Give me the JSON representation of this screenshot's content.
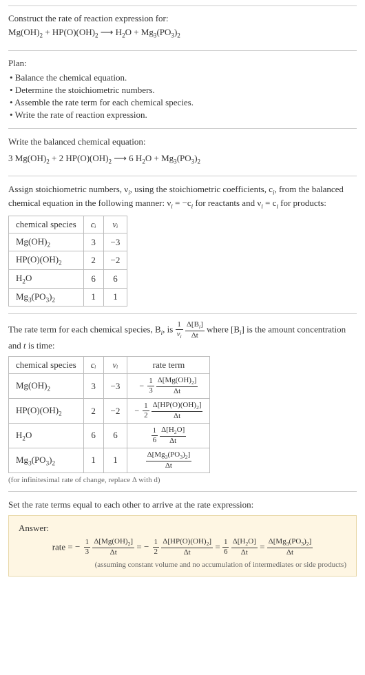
{
  "problem": {
    "title": "Construct the rate of reaction expression for:",
    "equation_left_1": "Mg(OH)",
    "equation_left_1_sub": "2",
    "equation_plus1": " + HP(O)(OH)",
    "equation_left_2_sub": "2",
    "equation_arrow": " ⟶ ",
    "equation_right_1": "H",
    "equation_right_1_sub": "2",
    "equation_right_1b": "O + Mg",
    "equation_right_2_sub": "3",
    "equation_right_2": "(PO",
    "equation_right_3_sub": "3",
    "equation_right_3": ")",
    "equation_right_4_sub": "2"
  },
  "plan": {
    "label": "Plan:",
    "b1": "• Balance the chemical equation.",
    "b2": "• Determine the stoichiometric numbers.",
    "b3": "• Assemble the rate term for each chemical species.",
    "b4": "• Write the rate of reaction expression."
  },
  "balanced": {
    "label": "Write the balanced chemical equation:",
    "c1": "3 Mg(OH)",
    "s1": "2",
    "c2": " + 2 HP(O)(OH)",
    "s2": "2",
    "arrow": " ⟶ ",
    "c3": "6 H",
    "s3": "2",
    "c4": "O + Mg",
    "s4": "3",
    "c5": "(PO",
    "s5": "3",
    "c6": ")",
    "s6": "2"
  },
  "stoich": {
    "para_a": "Assign stoichiometric numbers, ν",
    "para_a_sub": "i",
    "para_b": ", using the stoichiometric coefficients, c",
    "para_b_sub": "i",
    "para_c": ", from the balanced chemical equation in the following manner: ν",
    "para_c_sub": "i",
    "para_d": " = −c",
    "para_d_sub": "i",
    "para_e": " for reactants and ν",
    "para_e_sub": "i",
    "para_f": " = c",
    "para_f_sub": "i",
    "para_g": " for products:",
    "headers": {
      "h1": "chemical species",
      "h2": "cᵢ",
      "h3": "νᵢ"
    },
    "rows": [
      {
        "sp": "Mg(OH)",
        "sp_sub": "2",
        "c": "3",
        "v": "−3"
      },
      {
        "sp": "HP(O)(OH)",
        "sp_sub": "2",
        "c": "2",
        "v": "−2"
      },
      {
        "sp_a": "H",
        "sp_sub_a": "2",
        "sp_b": "O",
        "c": "6",
        "v": "6"
      },
      {
        "sp_a": "Mg",
        "sp_sub_a": "3",
        "sp_b": "(PO",
        "sp_sub_b": "3",
        "sp_c": ")",
        "sp_sub_c": "2",
        "c": "1",
        "v": "1"
      }
    ]
  },
  "rate_para": {
    "a": "The rate term for each chemical species, B",
    "a_sub": "i",
    "b": ", is ",
    "frac1_num": "1",
    "frac1_den_a": "ν",
    "frac1_den_sub": "i",
    "frac2_num_a": "Δ[B",
    "frac2_num_sub": "i",
    "frac2_num_b": "]",
    "frac2_den": "Δt",
    "c": " where [B",
    "c_sub": "i",
    "d": "] is the amount concentration and ",
    "e": "t",
    "f": " is time:"
  },
  "rate_table": {
    "headers": {
      "h1": "chemical species",
      "h2": "cᵢ",
      "h3": "νᵢ",
      "h4": "rate term"
    },
    "rows": [
      {
        "sp": "Mg(OH)",
        "sp_sub": "2",
        "c": "3",
        "v": "−3",
        "neg": "−",
        "f1n": "1",
        "f1d": "3",
        "f2n_a": "Δ[Mg(OH)",
        "f2n_s": "2",
        "f2n_b": "]",
        "f2d": "Δt"
      },
      {
        "sp": "HP(O)(OH)",
        "sp_sub": "2",
        "c": "2",
        "v": "−2",
        "neg": "−",
        "f1n": "1",
        "f1d": "2",
        "f2n_a": "Δ[HP(O)(OH)",
        "f2n_s": "2",
        "f2n_b": "]",
        "f2d": "Δt"
      },
      {
        "sp_a": "H",
        "sp_sub_a": "2",
        "sp_b": "O",
        "c": "6",
        "v": "6",
        "f1n": "1",
        "f1d": "6",
        "f2n_a": "Δ[H",
        "f2n_s": "2",
        "f2n_b": "O]",
        "f2d": "Δt"
      },
      {
        "sp_a": "Mg",
        "sp_sub_a": "3",
        "sp_b": "(PO",
        "sp_sub_b": "3",
        "sp_c": ")",
        "sp_sub_c": "2",
        "c": "1",
        "v": "1",
        "f2n_a": "Δ[Mg",
        "f2n_s": "3",
        "f2n_b": "(PO",
        "f2n_s2": "3",
        "f2n_c": ")",
        "f2n_s3": "2",
        "f2n_d": "]",
        "f2d": "Δt"
      }
    ],
    "note": "(for infinitesimal rate of change, replace Δ with d)"
  },
  "final": {
    "para": "Set the rate terms equal to each other to arrive at the rate expression:",
    "answer_label": "Answer:",
    "rate_label": "rate = ",
    "neg": "−",
    "t1_f1n": "1",
    "t1_f1d": "3",
    "t1_f2n_a": "Δ[Mg(OH)",
    "t1_f2n_s": "2",
    "t1_f2n_b": "]",
    "t1_f2d": "Δt",
    "eq": " = ",
    "t2_f1n": "1",
    "t2_f1d": "2",
    "t2_f2n_a": "Δ[HP(O)(OH)",
    "t2_f2n_s": "2",
    "t2_f2n_b": "]",
    "t2_f2d": "Δt",
    "t3_f1n": "1",
    "t3_f1d": "6",
    "t3_f2n_a": "Δ[H",
    "t3_f2n_s": "2",
    "t3_f2n_b": "O]",
    "t3_f2d": "Δt",
    "t4_f2n_a": "Δ[Mg",
    "t4_f2n_s": "3",
    "t4_f2n_b": "(PO",
    "t4_f2n_s2": "3",
    "t4_f2n_c": ")",
    "t4_f2n_s3": "2",
    "t4_f2n_d": "]",
    "t4_f2d": "Δt",
    "note": "(assuming constant volume and no accumulation of intermediates or side products)"
  }
}
